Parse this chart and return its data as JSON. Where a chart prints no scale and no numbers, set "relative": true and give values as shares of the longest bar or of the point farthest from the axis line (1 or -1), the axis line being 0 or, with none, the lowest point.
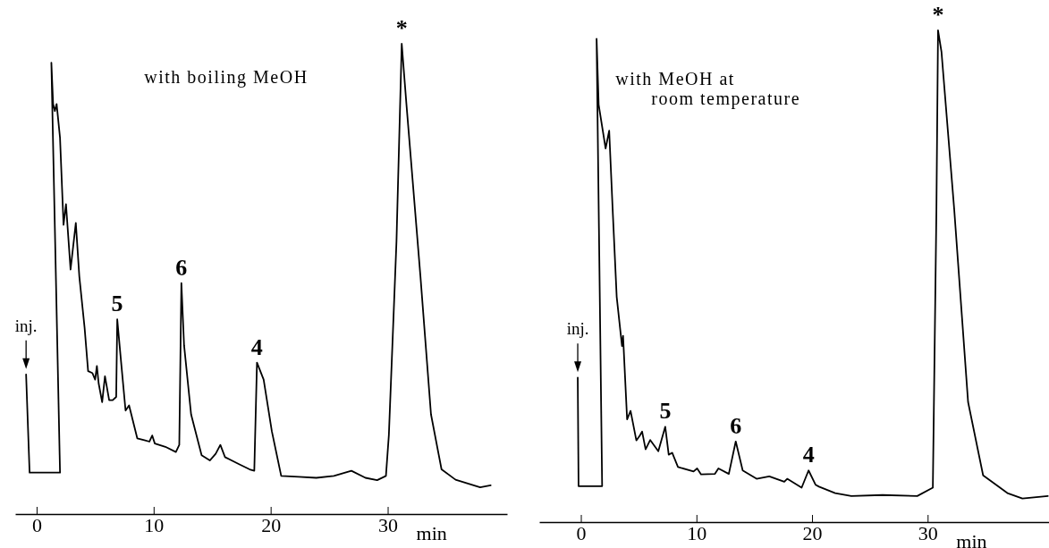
{
  "chart_data": [
    {
      "type": "line",
      "title": "with boiling MeOH",
      "xlabel": "min",
      "relative": true,
      "xlim": [
        -1.83,
        40.2
      ],
      "xticks": [
        0,
        10,
        20,
        30
      ],
      "annotations": [
        {
          "text": "inj.",
          "x": -0.9,
          "y": 0.297
        },
        {
          "text": "5",
          "x": 6.89,
          "y": 0.414
        },
        {
          "text": "6",
          "x": 12.37,
          "y": 0.491
        },
        {
          "text": "4",
          "x": 18.83,
          "y": 0.322
        },
        {
          "text": "*",
          "x": 31.2,
          "y": 1.0
        }
      ],
      "series": [
        {
          "color": "#000000",
          "x": [
            -0.9,
            -0.6,
            2.0,
            1.26,
            1.41,
            1.56,
            1.71,
            2.0,
            2.3,
            2.51,
            2.9,
            3.35,
            3.65,
            4.1,
            4.4,
            4.76,
            5.0,
            5.15,
            5.3,
            5.6,
            5.84,
            6.2,
            6.5,
            6.8,
            6.89,
            7.25,
            7.6,
            7.9,
            8.6,
            9.2,
            9.64,
            9.88,
            10.1,
            11.0,
            11.9,
            12.19,
            12.37,
            12.6,
            13.2,
            14.1,
            14.8,
            15.3,
            15.7,
            16.1,
            17.3,
            18.2,
            18.6,
            18.83,
            19.4,
            20.1,
            20.9,
            22.4,
            23.9,
            25.4,
            26.9,
            28.1,
            29.1,
            29.85,
            30.1,
            30.75,
            31.2,
            31.6,
            32.8,
            33.7,
            34.6,
            35.8,
            37.9,
            38.8
          ],
          "values": [
            0.297,
            0.088,
            0.088,
            0.96,
            0.872,
            0.857,
            0.872,
            0.8,
            0.615,
            0.659,
            0.52,
            0.619,
            0.505,
            0.396,
            0.304,
            0.3,
            0.286,
            0.315,
            0.278,
            0.238,
            0.293,
            0.242,
            0.242,
            0.249,
            0.414,
            0.315,
            0.22,
            0.231,
            0.161,
            0.157,
            0.154,
            0.167,
            0.15,
            0.143,
            0.132,
            0.147,
            0.491,
            0.359,
            0.212,
            0.125,
            0.114,
            0.128,
            0.147,
            0.121,
            0.106,
            0.095,
            0.092,
            0.322,
            0.286,
            0.176,
            0.081,
            0.079,
            0.077,
            0.081,
            0.092,
            0.077,
            0.072,
            0.081,
            0.168,
            0.579,
            1.0,
            0.872,
            0.505,
            0.212,
            0.095,
            0.073,
            0.057,
            0.061
          ]
        }
      ]
    },
    {
      "type": "line",
      "title": "with MeOH at\nroom temperature",
      "xlabel": "min",
      "relative": true,
      "xlim": [
        -3.6,
        40.5
      ],
      "xticks": [
        0,
        10,
        20,
        30
      ],
      "annotations": [
        {
          "text": "inj.",
          "x": -0.27,
          "y": 0.294
        },
        {
          "text": "5",
          "x": 7.3,
          "y": 0.194
        },
        {
          "text": "6",
          "x": 13.4,
          "y": 0.164
        },
        {
          "text": "4",
          "x": 19.7,
          "y": 0.105
        },
        {
          "text": "*",
          "x": 30.9,
          "y": 1.0
        }
      ],
      "series": [
        {
          "color": "#000000",
          "x": [
            -0.27,
            -0.2,
            1.84,
            1.36,
            1.54,
            2.14,
            2.45,
            2.75,
            3.1,
            3.56,
            3.65,
            4.0,
            4.3,
            4.8,
            5.1,
            5.3,
            5.6,
            6.0,
            6.7,
            7.3,
            7.6,
            7.9,
            8.4,
            9.75,
            10.06,
            10.4,
            11.6,
            11.9,
            12.8,
            13.4,
            14.0,
            15.2,
            16.3,
            17.6,
            17.85,
            19.1,
            19.7,
            20.3,
            20.6,
            22.0,
            23.4,
            26.1,
            29.1,
            30.45,
            30.76,
            30.9,
            31.2,
            32.3,
            33.5,
            34.8,
            36.9,
            38.2,
            40.4
          ],
          "values": [
            0.294,
            0.073,
            0.073,
            0.983,
            0.849,
            0.76,
            0.796,
            0.636,
            0.458,
            0.358,
            0.379,
            0.209,
            0.226,
            0.166,
            0.176,
            0.184,
            0.148,
            0.167,
            0.144,
            0.194,
            0.137,
            0.141,
            0.112,
            0.103,
            0.109,
            0.097,
            0.098,
            0.109,
            0.098,
            0.164,
            0.105,
            0.088,
            0.093,
            0.082,
            0.088,
            0.07,
            0.105,
            0.076,
            0.072,
            0.059,
            0.053,
            0.055,
            0.053,
            0.07,
            0.636,
            1.0,
            0.956,
            0.636,
            0.244,
            0.095,
            0.059,
            0.048,
            0.053
          ]
        }
      ]
    }
  ]
}
